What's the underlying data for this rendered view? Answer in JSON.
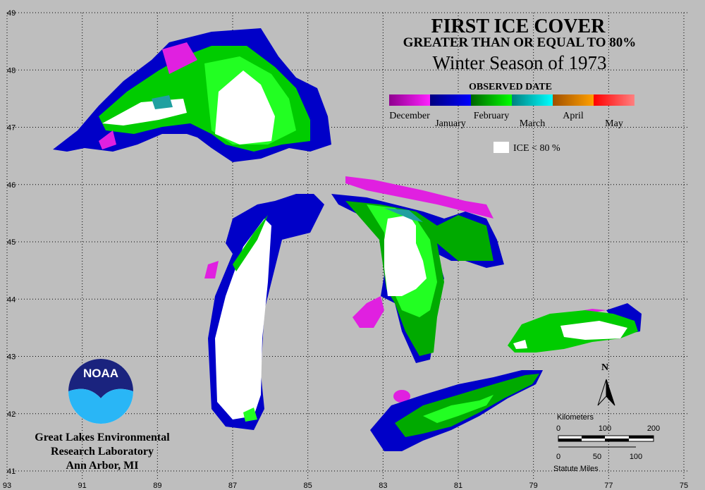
{
  "header": {
    "title": "FIRST ICE COVER",
    "subtitle": "GREATER THAN OR EQUAL TO 80%",
    "season": "Winter Season of 1973"
  },
  "legend": {
    "title": "OBSERVED DATE",
    "months": [
      "December",
      "January",
      "February",
      "March",
      "April",
      "May"
    ],
    "ice_label": "ICE < 80 %"
  },
  "grid": {
    "latitudes": [
      49,
      48,
      47,
      46,
      45,
      44,
      43,
      42,
      41
    ],
    "longitudes": [
      93,
      91,
      89,
      87,
      85,
      83,
      81,
      79,
      77,
      75
    ]
  },
  "organization": {
    "logo": "NOAA",
    "lines": [
      "Great Lakes Environmental",
      "Research Laboratory",
      "Ann Arbor, MI"
    ]
  },
  "scale_bar": {
    "km_title": "Kilometers",
    "km_labels": [
      "0",
      "100",
      "200"
    ],
    "mi_labels": [
      "0",
      "50",
      "100"
    ],
    "mi_title": "Statute Miles"
  },
  "north": "N"
}
